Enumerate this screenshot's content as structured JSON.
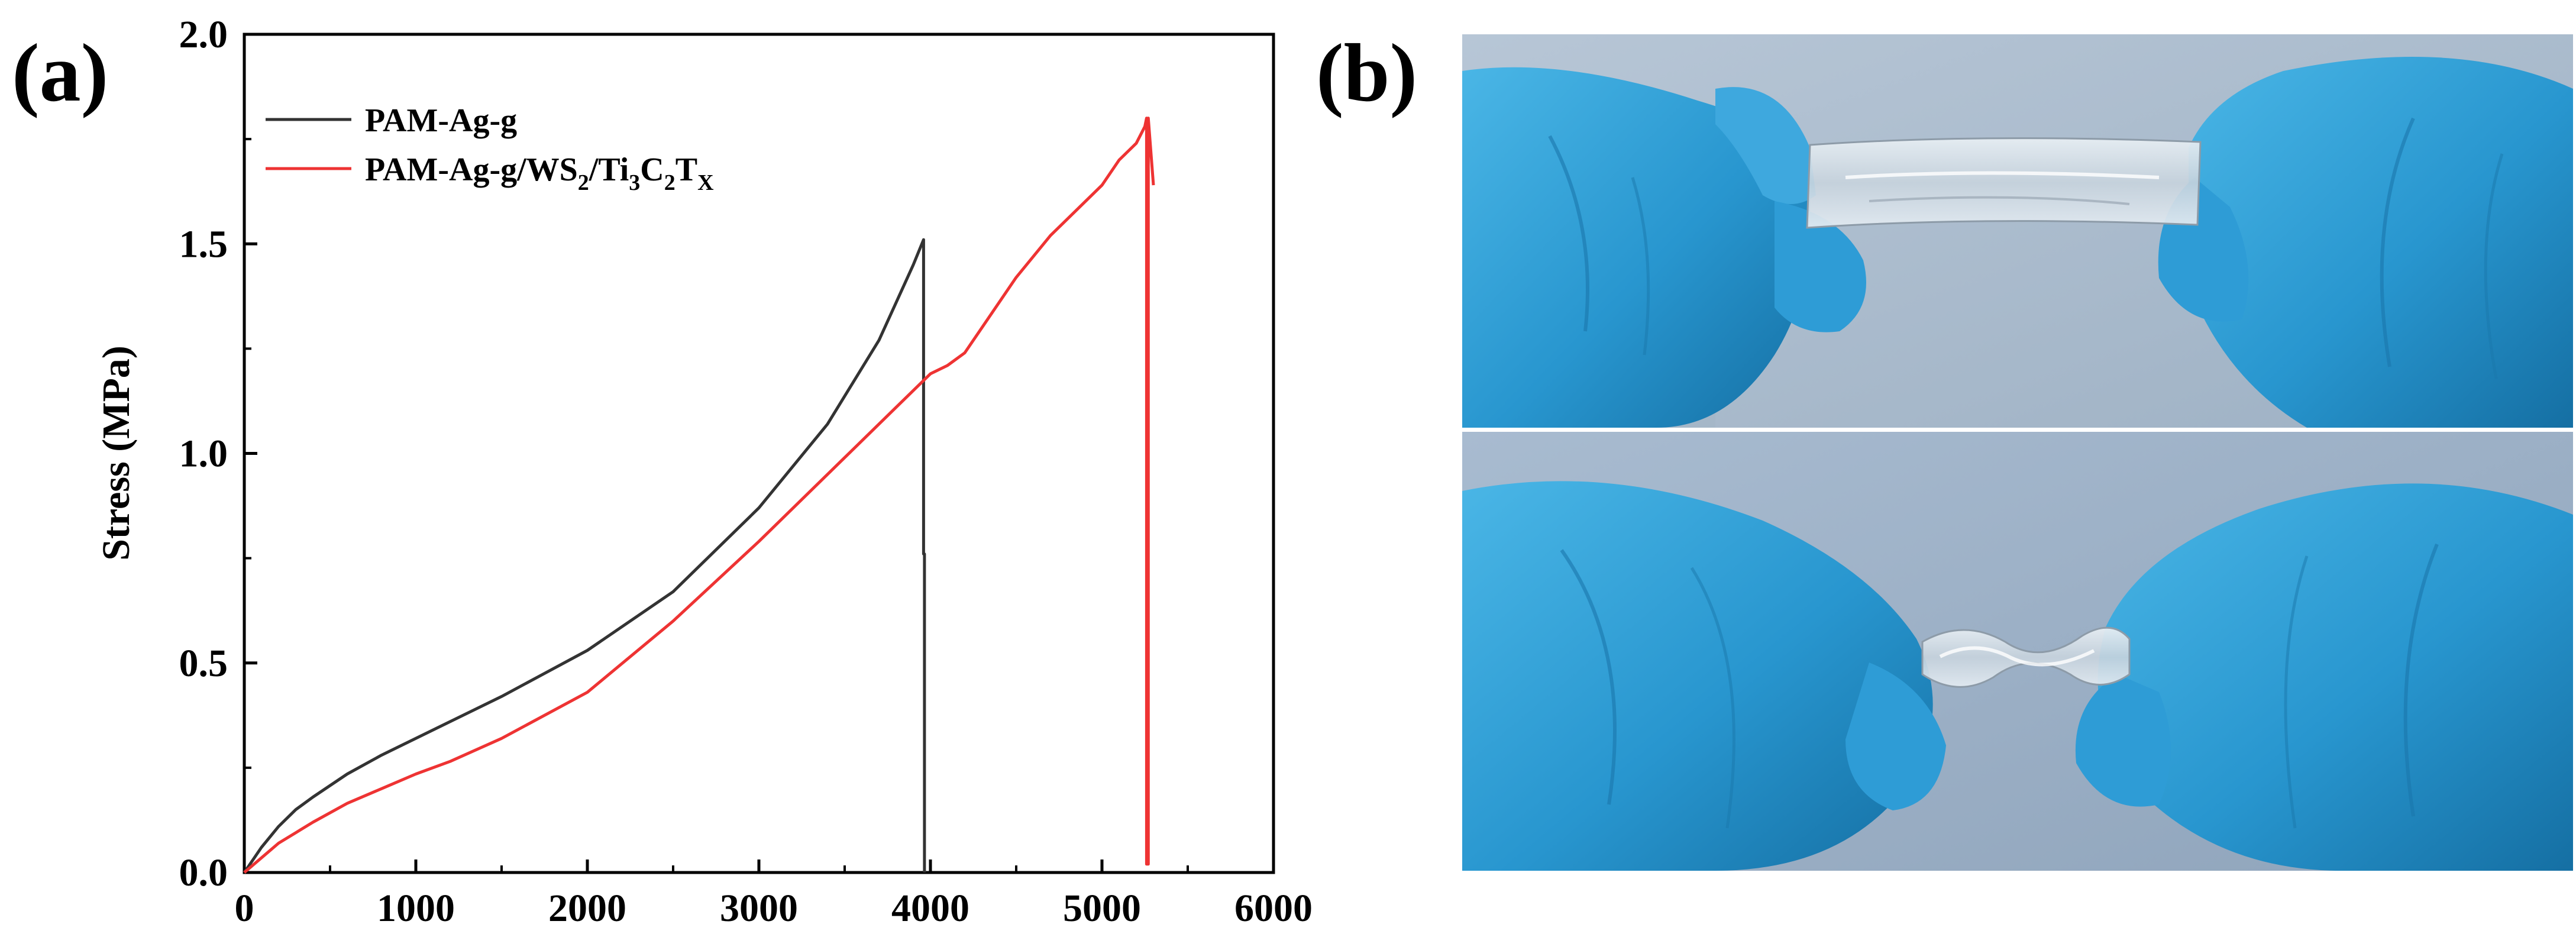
{
  "panels": {
    "a_label": "(a)",
    "b_label": "(b)"
  },
  "chart_data": {
    "type": "line",
    "title": "",
    "xlabel": "",
    "ylabel": "Stress (MPa)",
    "xlim": [
      0,
      6000
    ],
    "ylim": [
      0,
      2.0
    ],
    "x_ticks": [
      0,
      1000,
      2000,
      3000,
      4000,
      5000,
      6000
    ],
    "y_ticks": [
      0.0,
      0.5,
      1.0,
      1.5,
      2.0
    ],
    "x_tick_labels": [
      "0",
      "1000",
      "2000",
      "3000",
      "4000",
      "5000",
      "6000"
    ],
    "y_tick_labels": [
      "0.0",
      "0.5",
      "1.0",
      "1.5",
      "2.0"
    ],
    "grid": false,
    "legend_position": "top-left",
    "series": [
      {
        "name": "PAM-Ag-g",
        "label_main": "PAM-Ag-g",
        "color": "#333333",
        "x": [
          0,
          100,
          200,
          300,
          400,
          600,
          800,
          1000,
          1200,
          1500,
          2000,
          2500,
          3000,
          3400,
          3700,
          3900,
          3960,
          3960,
          3965,
          3965
        ],
        "y": [
          0,
          0.06,
          0.11,
          0.15,
          0.18,
          0.235,
          0.28,
          0.32,
          0.36,
          0.42,
          0.53,
          0.67,
          0.87,
          1.07,
          1.27,
          1.45,
          1.51,
          0.76,
          0.76,
          0.0
        ]
      },
      {
        "name": "PAM-Ag-g/WS2/Ti3C2TX",
        "label_main": "PAM-Ag-g/WS",
        "label_sub1": "2",
        "label_mid1": "/Ti",
        "label_sub2": "3",
        "label_mid2": "C",
        "label_sub3": "2",
        "label_mid3": "T",
        "label_sub4": "X",
        "color": "#ee3333",
        "x": [
          0,
          100,
          200,
          300,
          400,
          600,
          800,
          1000,
          1200,
          1500,
          2000,
          2500,
          3000,
          3500,
          4000,
          4100,
          4200,
          4500,
          4700,
          5000,
          5100,
          5200,
          5250,
          5260,
          5260,
          5270,
          5270,
          5300
        ],
        "y": [
          0,
          0.035,
          0.07,
          0.095,
          0.12,
          0.165,
          0.2,
          0.235,
          0.265,
          0.32,
          0.43,
          0.6,
          0.79,
          0.99,
          1.19,
          1.21,
          1.24,
          1.42,
          1.52,
          1.64,
          1.7,
          1.74,
          1.78,
          1.8,
          0.02,
          0.02,
          1.8,
          1.64
        ]
      }
    ]
  },
  "photos": {
    "top_caption": "",
    "bottom_caption": ""
  }
}
